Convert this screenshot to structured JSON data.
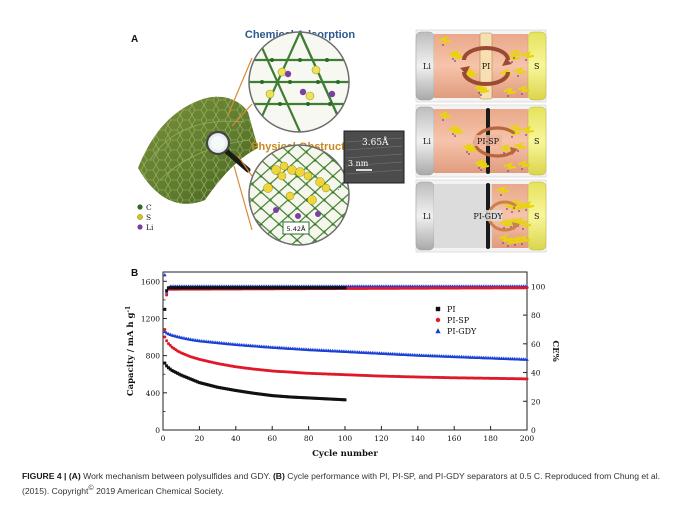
{
  "panel_a": {
    "label": "A",
    "chemical_title": "Chemical Adsorption",
    "physical_title": "Physical Obstruct",
    "tem_dist": "3.65Å",
    "tem_scale": "3 nm",
    "pore": "5.42Å",
    "legend": [
      {
        "symbol": "C",
        "color": "#2e6b2c"
      },
      {
        "symbol": "S",
        "color": "#d8c21c"
      },
      {
        "symbol": "Li",
        "color": "#7a3fa0"
      }
    ],
    "cells": [
      {
        "left": "Li",
        "sep": "PI",
        "right": "S"
      },
      {
        "left": "Li",
        "sep": "PI-SP",
        "right": "S"
      },
      {
        "left": "Li",
        "sep": "PI-GDY",
        "right": "S"
      }
    ],
    "colors": {
      "cathode_pink": "#f2b79a",
      "li_grey": "#d6d6d6",
      "s_yellow": "#f3f07a",
      "arrow_brown": "#9b4a33",
      "sulfide_yellow": "#f5e10f"
    }
  },
  "panel_b": {
    "label": "B",
    "chart_data": {
      "type": "scatter",
      "xlabel": "Cycle number",
      "ylabel": "Capacity / mA h g",
      "ylabel_sup": "-1",
      "y2label": "CE%",
      "xlim": [
        0,
        200
      ],
      "ylim": [
        0,
        1700
      ],
      "y2lim": [
        0,
        110
      ],
      "x_ticks": [
        0,
        20,
        40,
        60,
        80,
        100,
        120,
        140,
        160,
        180,
        200
      ],
      "y_ticks": [
        0,
        400,
        800,
        1200,
        1600
      ],
      "y_minor_ticks": [
        200,
        600,
        1000,
        1400
      ],
      "y2_ticks": [
        0,
        20,
        40,
        60,
        80,
        100
      ],
      "grid": false,
      "legend_position": "right",
      "series": [
        {
          "name": "PI",
          "marker": "square",
          "color": "#111111",
          "x": [
            1,
            2,
            3,
            5,
            8,
            10,
            15,
            20,
            30,
            40,
            50,
            60,
            70,
            80,
            90,
            100
          ],
          "y": [
            720,
            690,
            670,
            640,
            610,
            590,
            550,
            510,
            460,
            425,
            395,
            370,
            355,
            345,
            335,
            325
          ]
        },
        {
          "name": "PI-SP",
          "marker": "circle",
          "color": "#e0192a",
          "x": [
            1,
            2,
            3,
            5,
            8,
            10,
            15,
            20,
            30,
            40,
            50,
            60,
            80,
            100,
            120,
            140,
            160,
            180,
            200
          ],
          "y": [
            1000,
            960,
            930,
            890,
            850,
            830,
            790,
            760,
            715,
            680,
            655,
            635,
            610,
            595,
            580,
            570,
            562,
            556,
            550
          ]
        },
        {
          "name": "PI-GDY",
          "marker": "triangle",
          "color": "#1a3fd6",
          "x": [
            1,
            2,
            3,
            5,
            8,
            10,
            15,
            20,
            30,
            40,
            50,
            60,
            80,
            100,
            120,
            140,
            160,
            180,
            200
          ],
          "y": [
            1060,
            1045,
            1035,
            1020,
            1005,
            995,
            975,
            960,
            940,
            920,
            905,
            890,
            865,
            845,
            825,
            805,
            790,
            775,
            760
          ]
        },
        {
          "name": "",
          "axis": "y2",
          "marker": "triangle",
          "color": "#1a3fd6",
          "x": [
            1,
            2,
            3,
            4,
            200
          ],
          "y": [
            108,
            96,
            99,
            100,
            100
          ]
        },
        {
          "name": "",
          "axis": "y2",
          "marker": "circle",
          "color": "#e0192a",
          "x": [
            1,
            2,
            3,
            200
          ],
          "y": [
            70,
            94,
            98,
            99
          ]
        },
        {
          "name": "",
          "axis": "y2",
          "marker": "square",
          "color": "#111111",
          "x": [
            1,
            2,
            3,
            100
          ],
          "y": [
            84,
            97,
            99,
            99
          ]
        }
      ]
    }
  },
  "caption": {
    "prefix": "FIGURE 4 | ",
    "a_label": "(A)",
    "a_text": " Work mechanism between polysulfides and GDY. ",
    "b_label": "(B)",
    "b_text": " Cycle performance with PI, PI-SP, and PI-GDY separators at 0.5 C. Reproduced from Chung et al. (2015). Copyright",
    "copyright_mark": "©",
    "tail": " 2019 American Chemical Society."
  }
}
